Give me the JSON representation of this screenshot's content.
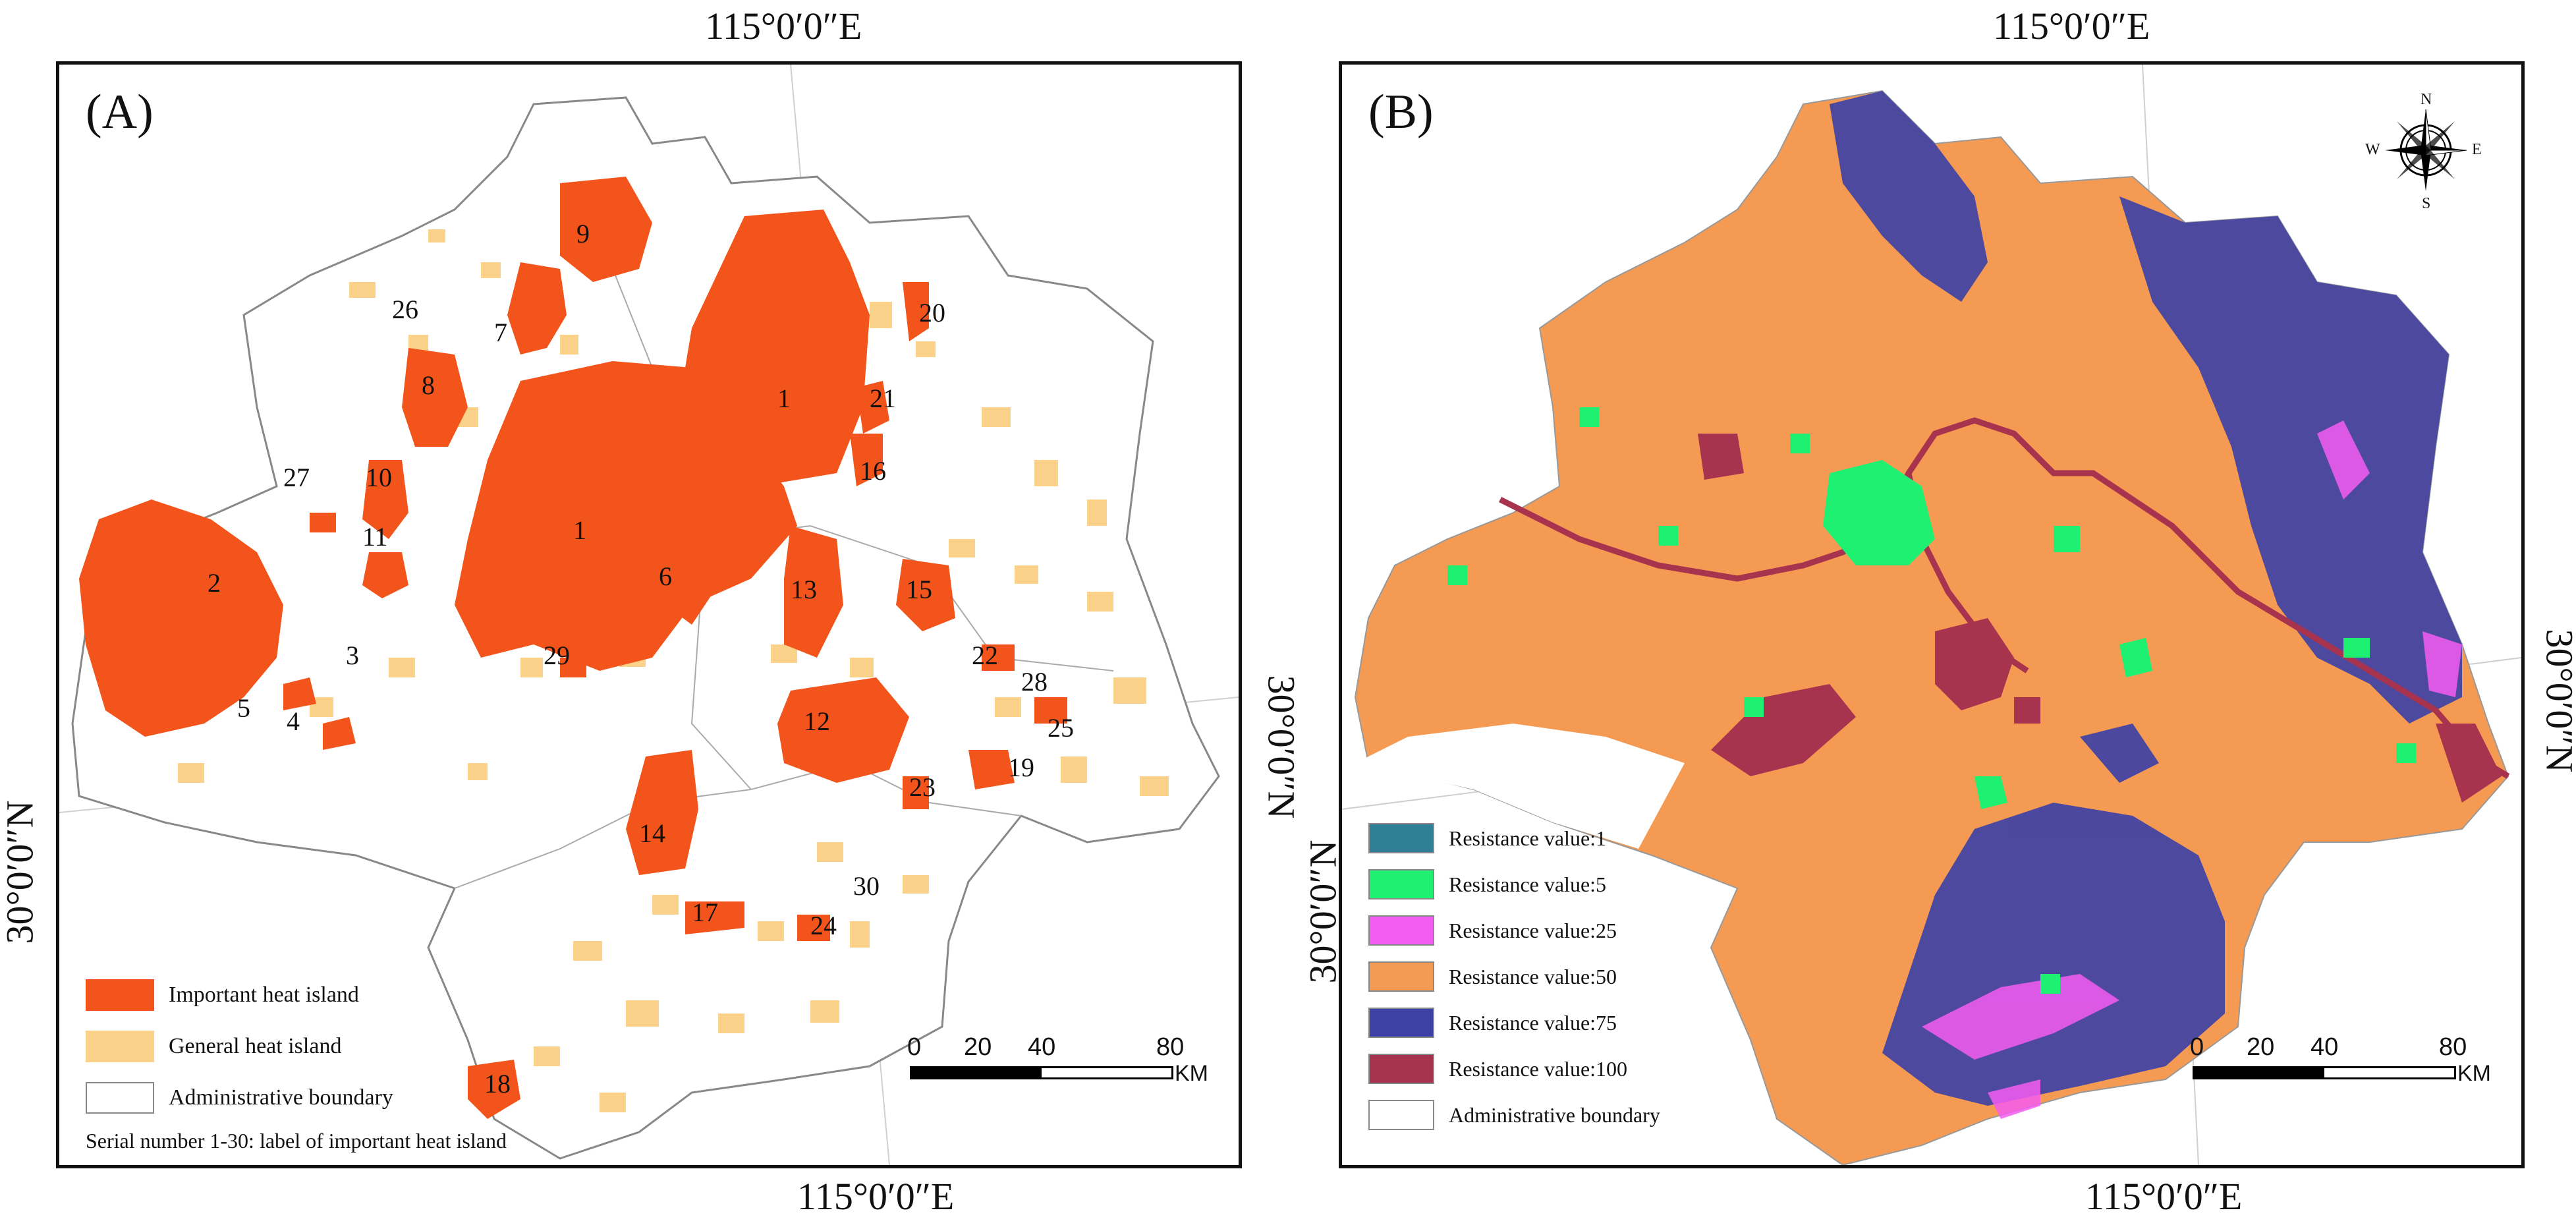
{
  "figure": {
    "top_coord_left": "115°0′0″E",
    "top_coord_right": "115°0′0″E",
    "bottom_coord_left": "115°0′0″E",
    "bottom_coord_right": "115°0′0″E",
    "left_coord_a": "30°0′0″N",
    "right_coord_a": "30°0′0″N",
    "left_coord_b": "30°0′0″N",
    "right_coord_b": "30°0′0″N"
  },
  "panel_a": {
    "label": "(A)",
    "heat_island_numbers": [
      "1",
      "1",
      "2",
      "3",
      "4",
      "5",
      "6",
      "7",
      "8",
      "9",
      "10",
      "11",
      "12",
      "13",
      "14",
      "15",
      "16",
      "17",
      "18",
      "19",
      "20",
      "21",
      "22",
      "23",
      "24",
      "25",
      "26",
      "27",
      "28",
      "29",
      "30"
    ],
    "legend": {
      "important_label": "Important heat island",
      "general_label": "General heat island",
      "boundary_label": "Administrative boundary",
      "note": "Serial number 1-30: label of important heat island"
    },
    "colors": {
      "important": "#f2541b",
      "general": "#fbd28a",
      "boundary": "#ffffff"
    },
    "scale": {
      "t0": "0",
      "t1": "20",
      "t2": "40",
      "t3": "80",
      "unit": "KM"
    }
  },
  "panel_b": {
    "label": "(B)",
    "compass": {
      "n": "N",
      "s": "S",
      "e": "E",
      "w": "W"
    },
    "legend": [
      {
        "label": "Resistance value:1",
        "color": "#2f7f97"
      },
      {
        "label": "Resistance value:5",
        "color": "#1ef072"
      },
      {
        "label": "Resistance value:25",
        "color": "#f55cf0"
      },
      {
        "label": "Resistance value:50",
        "color": "#f59a52"
      },
      {
        "label": "Resistance value:75",
        "color": "#3e42a6"
      },
      {
        "label": "Resistance value:100",
        "color": "#a8334f"
      },
      {
        "label": "Administrative boundary",
        "color": "#ffffff"
      }
    ],
    "scale": {
      "t0": "0",
      "t1": "20",
      "t2": "40",
      "t3": "80",
      "unit": "KM"
    }
  }
}
